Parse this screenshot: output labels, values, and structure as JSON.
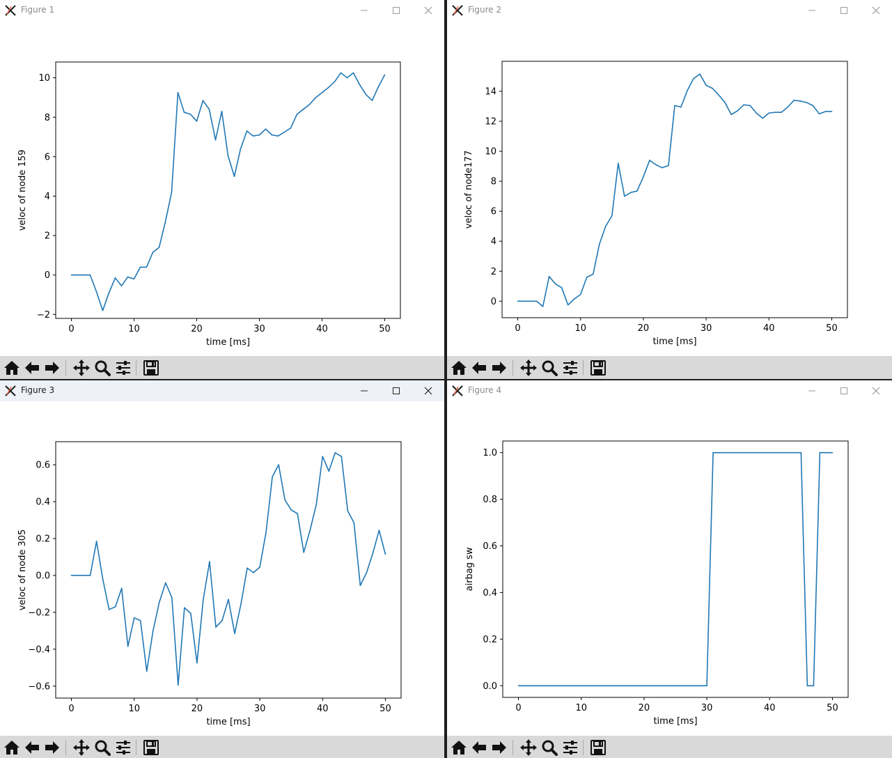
{
  "windows": [
    {
      "title": "Figure 1",
      "active": false,
      "chart": {
        "type": "line",
        "xlabel": "time [ms]",
        "ylabel": "veloc of node 159",
        "xlim": [
          -2.5,
          52.5
        ],
        "ylim": [
          -2.2,
          10.8
        ],
        "xticks": [
          0,
          10,
          20,
          30,
          40,
          50
        ],
        "yticks": [
          -2,
          0,
          2,
          4,
          6,
          8,
          10
        ],
        "yticklabels": [
          "−2",
          "0",
          "2",
          "4",
          "6",
          "8",
          "10"
        ],
        "color": "#1f77b4",
        "x": [
          0,
          1,
          2,
          3,
          4,
          5,
          6,
          7,
          8,
          9,
          10,
          11,
          12,
          13,
          14,
          15,
          16,
          17,
          18,
          19,
          20,
          21,
          22,
          23,
          24,
          25,
          26,
          27,
          28,
          29,
          30,
          31,
          32,
          33,
          34,
          35,
          36,
          37,
          38,
          39,
          40,
          41,
          42,
          43,
          44,
          45,
          46,
          47,
          48,
          49,
          50
        ],
        "y": [
          0,
          0,
          0,
          0,
          -0.85,
          -1.8,
          -0.9,
          -0.15,
          -0.55,
          -0.1,
          -0.2,
          0.4,
          0.4,
          1.15,
          1.4,
          2.7,
          4.2,
          9.25,
          8.25,
          8.15,
          7.8,
          8.85,
          8.4,
          6.85,
          8.3,
          6.05,
          5.0,
          6.4,
          7.3,
          7.05,
          7.1,
          7.4,
          7.1,
          7.05,
          7.25,
          7.45,
          8.15,
          8.4,
          8.65,
          9.0,
          9.25,
          9.5,
          9.8,
          10.25,
          10.0,
          10.25,
          9.65,
          9.15,
          8.85,
          9.55,
          10.15
        ]
      }
    },
    {
      "title": "Figure 2",
      "active": false,
      "chart": {
        "type": "line",
        "xlabel": "time [ms]",
        "ylabel": "veloc of node177",
        "xlim": [
          -2.5,
          52.5
        ],
        "ylim": [
          -1.1,
          16.0
        ],
        "xticks": [
          0,
          10,
          20,
          30,
          40,
          50
        ],
        "yticks": [
          0,
          2,
          4,
          6,
          8,
          10,
          12,
          14
        ],
        "yticklabels": [
          "0",
          "2",
          "4",
          "6",
          "8",
          "10",
          "12",
          "14"
        ],
        "color": "#1f77b4",
        "x": [
          0,
          1,
          2,
          3,
          4,
          5,
          6,
          7,
          8,
          9,
          10,
          11,
          12,
          13,
          14,
          15,
          16,
          17,
          18,
          19,
          20,
          21,
          22,
          23,
          24,
          25,
          26,
          27,
          28,
          29,
          30,
          31,
          32,
          33,
          34,
          35,
          36,
          37,
          38,
          39,
          40,
          41,
          42,
          43,
          44,
          45,
          46,
          47,
          48,
          49,
          50
        ],
        "y": [
          0,
          0,
          0,
          0,
          -0.35,
          1.65,
          1.15,
          0.9,
          -0.25,
          0.15,
          0.45,
          1.6,
          1.8,
          3.8,
          5.0,
          5.7,
          9.2,
          7.0,
          7.25,
          7.35,
          8.3,
          9.4,
          9.1,
          8.9,
          9.05,
          13.05,
          12.95,
          14.05,
          14.85,
          15.15,
          14.4,
          14.2,
          13.75,
          13.25,
          12.45,
          12.7,
          13.1,
          13.05,
          12.55,
          12.2,
          12.55,
          12.6,
          12.6,
          12.95,
          13.4,
          13.35,
          13.25,
          13.05,
          12.5,
          12.65,
          12.65
        ]
      }
    },
    {
      "title": "Figure 3",
      "active": true,
      "chart": {
        "type": "line",
        "xlabel": "time [ms]",
        "ylabel": "veloc of node 305",
        "xlim": [
          -2.5,
          52.5
        ],
        "ylim": [
          -0.665,
          0.725
        ],
        "xticks": [
          0,
          10,
          20,
          30,
          40,
          50
        ],
        "yticks": [
          -0.6,
          -0.4,
          -0.2,
          0.0,
          0.2,
          0.4,
          0.6
        ],
        "yticklabels": [
          "−0.6",
          "−0.4",
          "−0.2",
          "0.0",
          "0.2",
          "0.4",
          "0.6"
        ],
        "color": "#1f77b4",
        "x": [
          0,
          1,
          2,
          3,
          4,
          5,
          6,
          7,
          8,
          9,
          10,
          11,
          12,
          13,
          14,
          15,
          16,
          17,
          18,
          19,
          20,
          21,
          22,
          23,
          24,
          25,
          26,
          27,
          28,
          29,
          30,
          31,
          32,
          33,
          34,
          35,
          36,
          37,
          38,
          39,
          40,
          41,
          42,
          43,
          44,
          45,
          46,
          47,
          48,
          49,
          50
        ],
        "y": [
          0,
          0,
          0,
          0,
          0.185,
          -0.02,
          -0.185,
          -0.17,
          -0.07,
          -0.385,
          -0.23,
          -0.245,
          -0.52,
          -0.3,
          -0.145,
          -0.04,
          -0.12,
          -0.595,
          -0.175,
          -0.205,
          -0.475,
          -0.13,
          0.075,
          -0.28,
          -0.245,
          -0.13,
          -0.315,
          -0.155,
          0.04,
          0.015,
          0.045,
          0.235,
          0.535,
          0.6,
          0.41,
          0.355,
          0.335,
          0.125,
          0.245,
          0.385,
          0.645,
          0.565,
          0.665,
          0.645,
          0.35,
          0.285,
          -0.055,
          0.015,
          0.12,
          0.245,
          0.115
        ]
      }
    },
    {
      "title": "Figure 4",
      "active": false,
      "chart": {
        "type": "line",
        "xlabel": "time [ms]",
        "ylabel": "airbag sw",
        "xlim": [
          -2.5,
          52.5
        ],
        "ylim": [
          -0.05,
          1.05
        ],
        "xticks": [
          0,
          10,
          20,
          30,
          40,
          50
        ],
        "yticks": [
          0.0,
          0.2,
          0.4,
          0.6,
          0.8,
          1.0
        ],
        "yticklabels": [
          "0.0",
          "0.2",
          "0.4",
          "0.6",
          "0.8",
          "1.0"
        ],
        "color": "#1f77b4",
        "x": [
          0,
          30,
          31,
          45,
          46,
          47,
          48,
          50
        ],
        "y": [
          0,
          0,
          1,
          1,
          0,
          0,
          1,
          1
        ]
      }
    }
  ],
  "toolbar": {
    "tools": [
      "home-icon",
      "back-arrow-icon",
      "forward-arrow-icon",
      "pan-icon",
      "zoom-icon",
      "configure-subplots-icon",
      "save-icon"
    ]
  }
}
